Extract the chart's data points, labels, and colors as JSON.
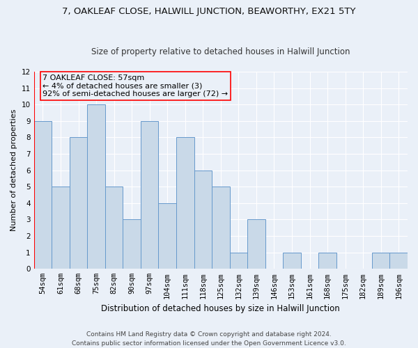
{
  "title": "7, OAKLEAF CLOSE, HALWILL JUNCTION, BEAWORTHY, EX21 5TY",
  "subtitle": "Size of property relative to detached houses in Halwill Junction",
  "xlabel": "Distribution of detached houses by size in Halwill Junction",
  "ylabel": "Number of detached properties",
  "categories": [
    "54sqm",
    "61sqm",
    "68sqm",
    "75sqm",
    "82sqm",
    "90sqm",
    "97sqm",
    "104sqm",
    "111sqm",
    "118sqm",
    "125sqm",
    "132sqm",
    "139sqm",
    "146sqm",
    "153sqm",
    "161sqm",
    "168sqm",
    "175sqm",
    "182sqm",
    "189sqm",
    "196sqm"
  ],
  "values": [
    9,
    5,
    8,
    10,
    5,
    3,
    9,
    4,
    8,
    6,
    5,
    1,
    3,
    0,
    1,
    0,
    1,
    0,
    0,
    1,
    1
  ],
  "bar_color": "#c9d9e8",
  "bar_edge_color": "#6699cc",
  "annotation_box_text": "7 OAKLEAF CLOSE: 57sqm\n← 4% of detached houses are smaller (3)\n92% of semi-detached houses are larger (72) →",
  "ylim": [
    0,
    12
  ],
  "yticks": [
    0,
    1,
    2,
    3,
    4,
    5,
    6,
    7,
    8,
    9,
    10,
    11,
    12
  ],
  "background_color": "#eaf0f8",
  "grid_color": "#ffffff",
  "footnote": "Contains HM Land Registry data © Crown copyright and database right 2024.\nContains public sector information licensed under the Open Government Licence v3.0.",
  "title_fontsize": 9.5,
  "subtitle_fontsize": 8.5,
  "xlabel_fontsize": 8.5,
  "ylabel_fontsize": 8,
  "tick_fontsize": 7.5,
  "annotation_fontsize": 8,
  "footnote_fontsize": 6.5
}
